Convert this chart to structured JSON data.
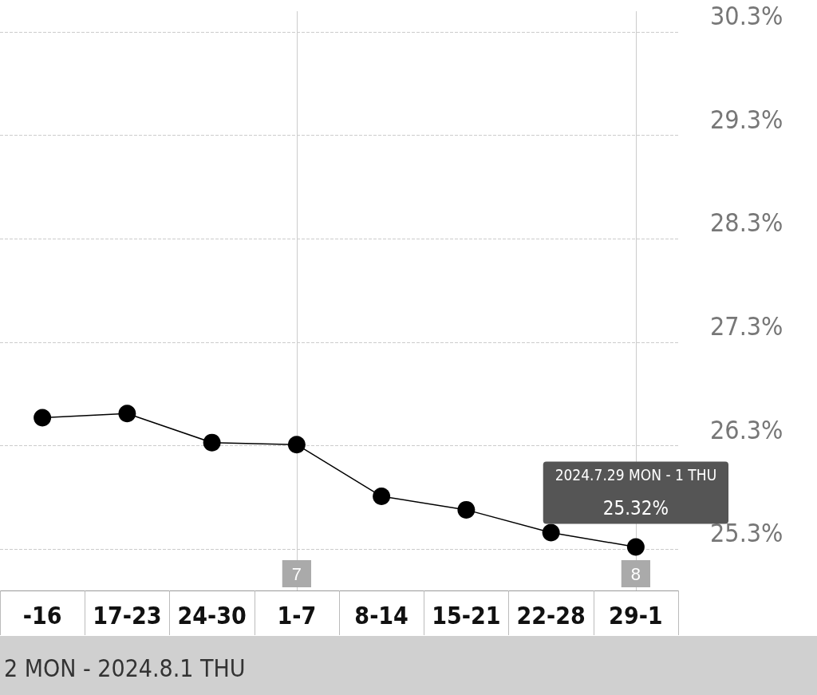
{
  "chart_data": {
    "type": "line",
    "subtitle": "2 MON - 2024.8.1 THU",
    "categories": [
      "-16",
      "17-23",
      "24-30",
      "1-7",
      "8-14",
      "15-21",
      "22-28",
      "29-1"
    ],
    "series": [
      {
        "color": "#000000",
        "values": [
          26.57,
          26.61,
          26.33,
          26.31,
          25.81,
          25.68,
          25.46,
          25.32
        ],
        "value_labels": [
          null,
          null,
          null,
          null,
          null,
          null,
          null,
          "25.32%"
        ]
      }
    ],
    "annotations": [
      "2024.7.29 MON - 1 THU"
    ],
    "ref_lines": [
      {
        "axis": "x",
        "value": "1-7",
        "label": "7",
        "color": "#cccccc"
      },
      {
        "axis": "x",
        "value": "29-1",
        "label": "8",
        "color": "#cccccc"
      }
    ],
    "ylim": [
      24.9,
      30.5
    ],
    "yticks": [
      {
        "value": 25.3,
        "label": "25.3%"
      },
      {
        "value": 26.3,
        "label": "26.3%"
      },
      {
        "value": 27.3,
        "label": "27.3%"
      },
      {
        "value": 28.3,
        "label": "28.3%"
      },
      {
        "value": 29.3,
        "label": "29.3%"
      },
      {
        "value": 30.3,
        "label": "30.3%"
      }
    ],
    "grid": "y",
    "marker": "circle",
    "line_style": "solid"
  }
}
